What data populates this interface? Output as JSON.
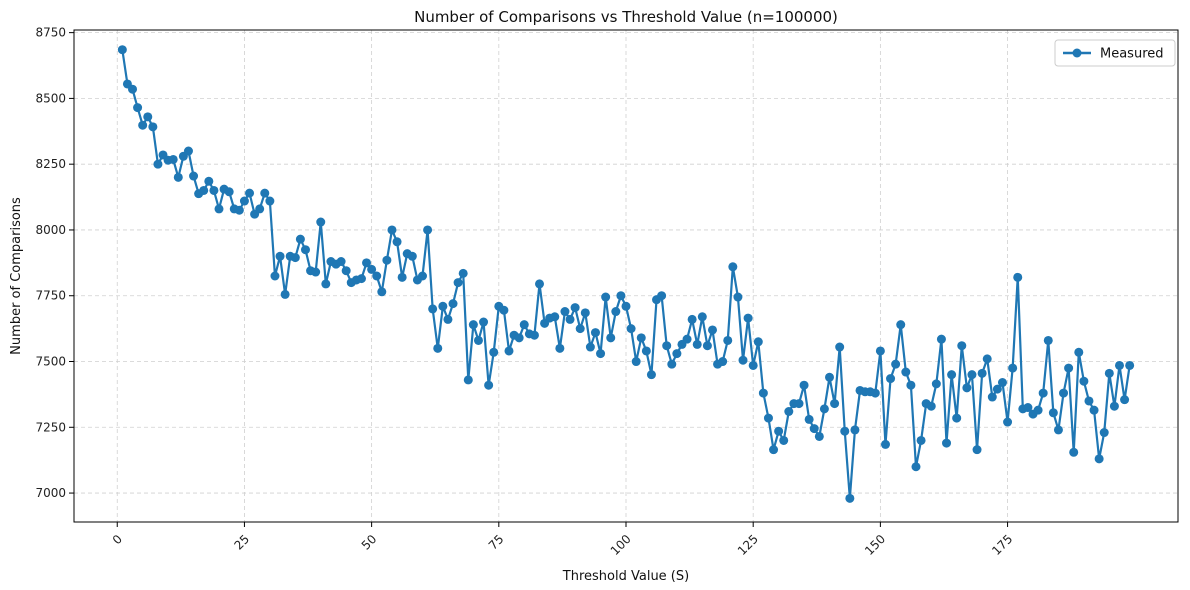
{
  "chart_data": {
    "type": "line",
    "title": "Number of Comparisons vs Threshold Value (n=100000)",
    "xlabel": "Threshold Value (S)",
    "ylabel": "Number of Comparisons",
    "xlim": [
      -8.5,
      208.5
    ],
    "ylim": [
      6890,
      8760
    ],
    "xticks": [
      0,
      25,
      50,
      75,
      100,
      125,
      150,
      175
    ],
    "xtick_rotation": 45,
    "yticks": [
      7000,
      7250,
      7500,
      7750,
      8000,
      8250,
      8500,
      8750
    ],
    "grid": true,
    "legend_position": "top-right",
    "series": [
      {
        "name": "Measured",
        "color": "#1f77b4",
        "marker": "circle",
        "x": [
          1,
          2,
          3,
          4,
          5,
          6,
          7,
          8,
          9,
          10,
          11,
          12,
          13,
          14,
          15,
          16,
          17,
          18,
          19,
          20,
          21,
          22,
          23,
          24,
          25,
          26,
          27,
          28,
          29,
          30,
          31,
          32,
          33,
          34,
          35,
          36,
          37,
          38,
          39,
          40,
          41,
          42,
          43,
          44,
          45,
          46,
          47,
          48,
          49,
          50,
          51,
          52,
          53,
          54,
          55,
          56,
          57,
          58,
          59,
          60,
          61,
          62,
          63,
          64,
          65,
          66,
          67,
          68,
          69,
          70,
          71,
          72,
          73,
          74,
          75,
          76,
          77,
          78,
          79,
          80,
          81,
          82,
          83,
          84,
          85,
          86,
          87,
          88,
          89,
          90,
          91,
          92,
          93,
          94,
          95,
          96,
          97,
          98,
          99,
          100,
          101,
          102,
          103,
          104,
          105,
          106,
          107,
          108,
          109,
          110,
          111,
          112,
          113,
          114,
          115,
          116,
          117,
          118,
          119,
          120,
          121,
          122,
          123,
          124,
          125,
          126,
          127,
          128,
          129,
          130,
          131,
          132,
          133,
          134,
          135,
          136,
          137,
          138,
          139,
          140,
          141,
          142,
          143,
          144,
          145,
          146,
          147,
          148,
          149,
          150,
          151,
          152,
          153,
          154,
          155,
          156,
          157,
          158,
          159,
          160,
          161,
          162,
          163,
          164,
          165,
          166,
          167,
          168,
          169,
          170,
          171,
          172,
          173,
          174,
          175,
          176,
          177,
          178,
          179,
          180,
          181,
          182,
          183,
          184,
          185,
          186,
          187,
          188,
          189,
          190,
          191,
          192,
          193,
          194,
          195,
          196,
          197,
          198,
          199
        ],
        "y": [
          8685,
          8555,
          8535,
          8465,
          8398,
          8430,
          8392,
          8250,
          8285,
          8265,
          8268,
          8200,
          8280,
          8300,
          8205,
          8138,
          8150,
          8185,
          8150,
          8080,
          8155,
          8145,
          8080,
          8075,
          8110,
          8140,
          8060,
          8080,
          8140,
          8110,
          7825,
          7900,
          7755,
          7900,
          7895,
          7965,
          7925,
          7845,
          7840,
          8030,
          7795,
          7880,
          7870,
          7880,
          7845,
          7800,
          7810,
          7815,
          7875,
          7850,
          7825,
          7765,
          7885,
          8000,
          7955,
          7820,
          7910,
          7900,
          7810,
          7825,
          8000,
          7700,
          7550,
          7710,
          7660,
          7720,
          7800,
          7835,
          7430,
          7640,
          7580,
          7650,
          7410,
          7535,
          7710,
          7695,
          7540,
          7600,
          7590,
          7640,
          7605,
          7600,
          7795,
          7645,
          7665,
          7670,
          7550,
          7690,
          7660,
          7705,
          7625,
          7685,
          7555,
          7610,
          7530,
          7745,
          7590,
          7690,
          7750,
          7710,
          7625,
          7500,
          7590,
          7540,
          7450,
          7735,
          7750,
          7560,
          7490,
          7530,
          7565,
          7585,
          7660,
          7565,
          7670,
          7560,
          7620,
          7490,
          7500,
          7580,
          7860,
          7745,
          7505,
          7665,
          7485,
          7575,
          7380,
          7285,
          7165,
          7235,
          7200,
          7310,
          7340,
          7340,
          7410,
          7280,
          7245,
          7215,
          7320,
          7440,
          7340,
          7555,
          7235,
          6980,
          7240,
          7390,
          7385,
          7385,
          7380,
          7540,
          7185,
          7435,
          7490,
          7640,
          7460,
          7410,
          7100,
          7200,
          7340,
          7330,
          7415,
          7585,
          7190,
          7450,
          7285,
          7560,
          7400,
          7450,
          7165,
          7455,
          7510,
          7365,
          7395,
          7420,
          7270,
          7475,
          7820,
          7320,
          7325,
          7300,
          7315,
          7380,
          7580,
          7305,
          7240,
          7380,
          7475,
          7155,
          7535,
          7425,
          7350,
          7315,
          7130,
          7230,
          7455,
          7330,
          7485,
          7355,
          7485
        ]
      }
    ]
  }
}
